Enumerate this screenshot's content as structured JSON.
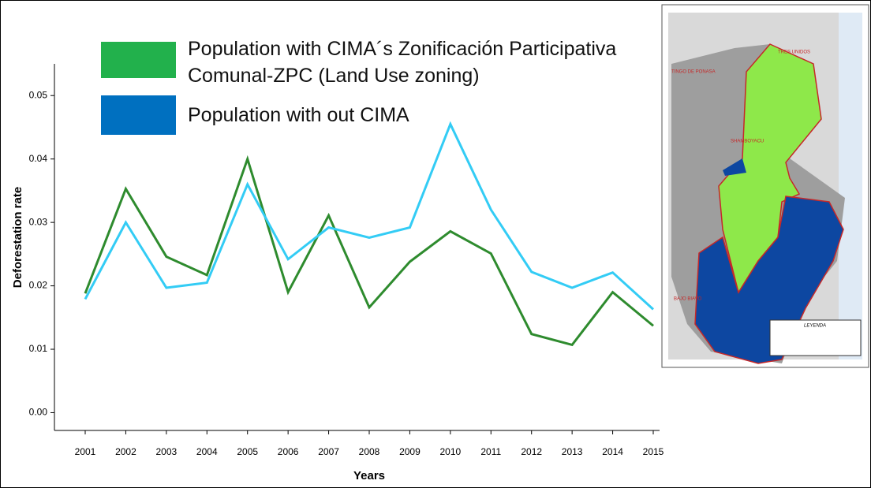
{
  "chart_data": {
    "type": "line",
    "x_label": "Years",
    "y_label": "Deforestation rate",
    "categories": [
      "2001",
      "2002",
      "2003",
      "2004",
      "2005",
      "2006",
      "2007",
      "2008",
      "2009",
      "2010",
      "2011",
      "2012",
      "2013",
      "2014",
      "2015"
    ],
    "series": [
      {
        "name": "Population with CIMA´s Zonificación Participativa Comunal-ZPC  (Land Use zoning)",
        "color": "#2e8b2e",
        "legend_color": "#22b14c",
        "values": [
          0.0188,
          0.0353,
          0.0246,
          0.0217,
          0.04,
          0.019,
          0.0311,
          0.0166,
          0.0238,
          0.0286,
          0.0251,
          0.0124,
          0.0107,
          0.019,
          0.0137
        ]
      },
      {
        "name": "Population with out CIMA",
        "color": "#33ccf5",
        "legend_color": "#0070c0",
        "values": [
          0.0179,
          0.03,
          0.0197,
          0.0205,
          0.036,
          0.0242,
          0.0292,
          0.0276,
          0.0292,
          0.0455,
          0.032,
          0.0222,
          0.0197,
          0.0221,
          0.0163
        ]
      }
    ],
    "ylim": [
      -0.0028,
      0.055
    ],
    "yticks": [
      {
        "value": 0,
        "label": "0.00"
      },
      0.01,
      0.02,
      0.03,
      0.04,
      0.05
    ],
    "grid": false
  },
  "map": {
    "labels": [
      "TRES UNIDOS",
      "TINGO DE PONASA",
      "SHAMBOYACU",
      "BAJO BIAVO",
      "LEYENDA"
    ]
  }
}
